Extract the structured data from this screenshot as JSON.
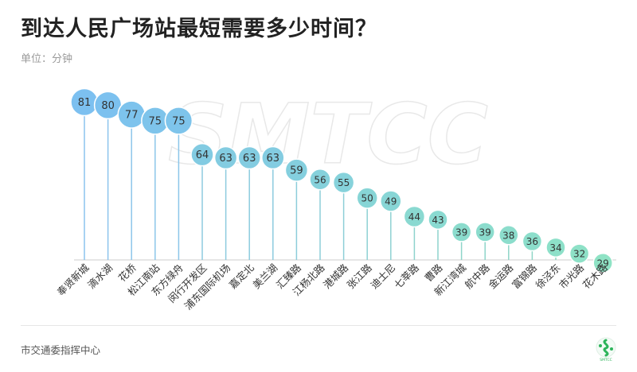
{
  "header": {
    "title": "到达人民广场站最短需要多少时间？",
    "unit": "单位：分钟"
  },
  "footer": {
    "source": "市交通委指挥中心"
  },
  "watermark": "SMTCC",
  "colors": {
    "high": "#7cc0f0",
    "low": "#8fe3c5",
    "stem_high": "#8cc4ee",
    "stem_low": "#8fd9c0",
    "axis": "#cccccc"
  },
  "chart_data": {
    "type": "lollipop",
    "ylabel": "分钟",
    "ylim": [
      0,
      90
    ],
    "categories": [
      "奉贤新城",
      "滴水湖",
      "花桥",
      "松江南站",
      "东方绿舟",
      "闵行开发区",
      "浦东国际机场",
      "嘉定北",
      "美兰湖",
      "汇臻路",
      "江杨北路",
      "港城路",
      "张江路",
      "迪士尼",
      "七莘路",
      "曹路",
      "新江湾城",
      "航中路",
      "金运路",
      "富锦路",
      "徐泾东",
      "市光路",
      "花木路"
    ],
    "values": [
      81,
      80,
      77,
      75,
      75,
      64,
      63,
      63,
      63,
      59,
      56,
      55,
      50,
      49,
      44,
      43,
      39,
      39,
      38,
      36,
      34,
      32,
      29
    ]
  }
}
